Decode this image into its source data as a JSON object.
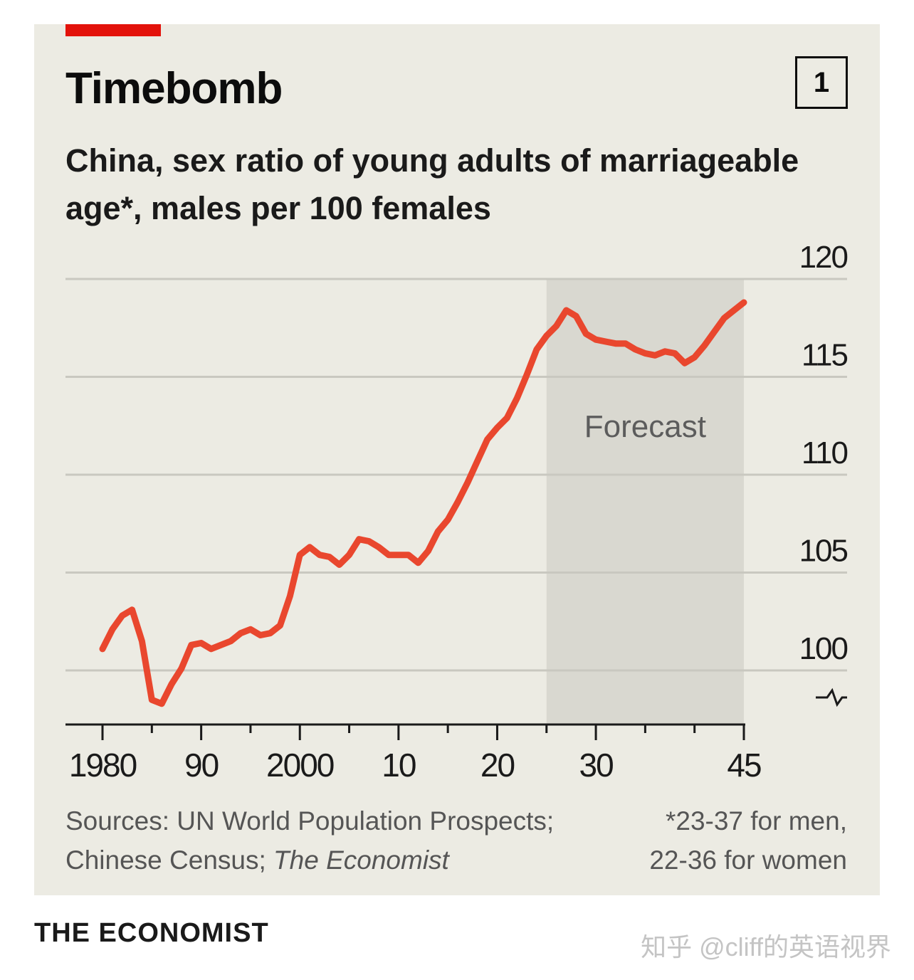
{
  "header": {
    "title": "Timebomb",
    "chart_number": "1",
    "subtitle": "China, sex ratio of young adults of marriageable age*, males per 100 females"
  },
  "footer": {
    "source_prefix": "Sources: UN World Population Prospects;",
    "source_line2_plain": "Chinese Census; ",
    "source_line2_italic": "The Economist",
    "footnote_line1": "*23-37 for men,",
    "footnote_line2": "22-36 for women"
  },
  "brand": "THE ECONOMIST",
  "watermark": "知乎 @cliff的英语视界",
  "colors": {
    "background": "#ecebe3",
    "line": "#e9472e",
    "forecast_shade": "#d9d8d0",
    "gridline": "#c9c8c0",
    "accent_tag": "#e3120b"
  },
  "chart_data": {
    "type": "line",
    "title": "Timebomb",
    "xlabel": "",
    "ylabel": "males per 100 females",
    "xlim": [
      1980,
      2045
    ],
    "ylim": [
      97.5,
      120
    ],
    "y_axis_break": true,
    "y_axis_side": "right",
    "yticks": [
      100,
      105,
      110,
      115,
      120
    ],
    "xticks_major": [
      1980,
      1990,
      2000,
      2010,
      2020,
      2030,
      2045
    ],
    "xtick_labels": [
      "1980",
      "90",
      "2000",
      "10",
      "20",
      "30",
      "45"
    ],
    "xticks_minor": [
      1985,
      1995,
      2005,
      2015,
      2025,
      2035,
      2040
    ],
    "grid": true,
    "forecast_region": {
      "from": 2025,
      "to": 2045,
      "label": "Forecast"
    },
    "series": [
      {
        "x": [
          1980,
          1981,
          1982,
          1983,
          1984,
          1985,
          1986,
          1987,
          1988,
          1989,
          1990,
          1991,
          1992,
          1993,
          1994,
          1995,
          1996,
          1997,
          1998,
          1999,
          2000,
          2001,
          2002,
          2003,
          2004,
          2005,
          2006,
          2007,
          2008,
          2009,
          2010,
          2011,
          2012,
          2013,
          2014,
          2015,
          2016,
          2017,
          2018,
          2019,
          2020,
          2021,
          2022,
          2023,
          2024,
          2025,
          2026,
          2027,
          2028,
          2029,
          2030,
          2031,
          2032,
          2033,
          2034,
          2035,
          2036,
          2037,
          2038,
          2039,
          2040,
          2041,
          2042,
          2043,
          2044,
          2045
        ],
        "values": [
          101.1,
          102.1,
          102.8,
          103.1,
          101.5,
          98.5,
          98.3,
          99.3,
          100.1,
          101.3,
          101.4,
          101.1,
          101.3,
          101.5,
          101.9,
          102.1,
          101.8,
          101.9,
          102.3,
          103.8,
          105.9,
          106.3,
          105.9,
          105.8,
          105.4,
          105.9,
          106.7,
          106.6,
          106.3,
          105.9,
          105.9,
          105.9,
          105.5,
          106.1,
          107.1,
          107.7,
          108.6,
          109.6,
          110.7,
          111.8,
          112.4,
          112.9,
          113.9,
          115.1,
          116.4,
          117.1,
          117.6,
          118.4,
          118.1,
          117.2,
          116.9,
          116.8,
          116.7,
          116.7,
          116.4,
          116.2,
          116.1,
          116.3,
          116.2,
          115.7,
          116.0,
          116.6,
          117.3,
          118.0,
          118.4,
          118.8
        ]
      }
    ]
  }
}
